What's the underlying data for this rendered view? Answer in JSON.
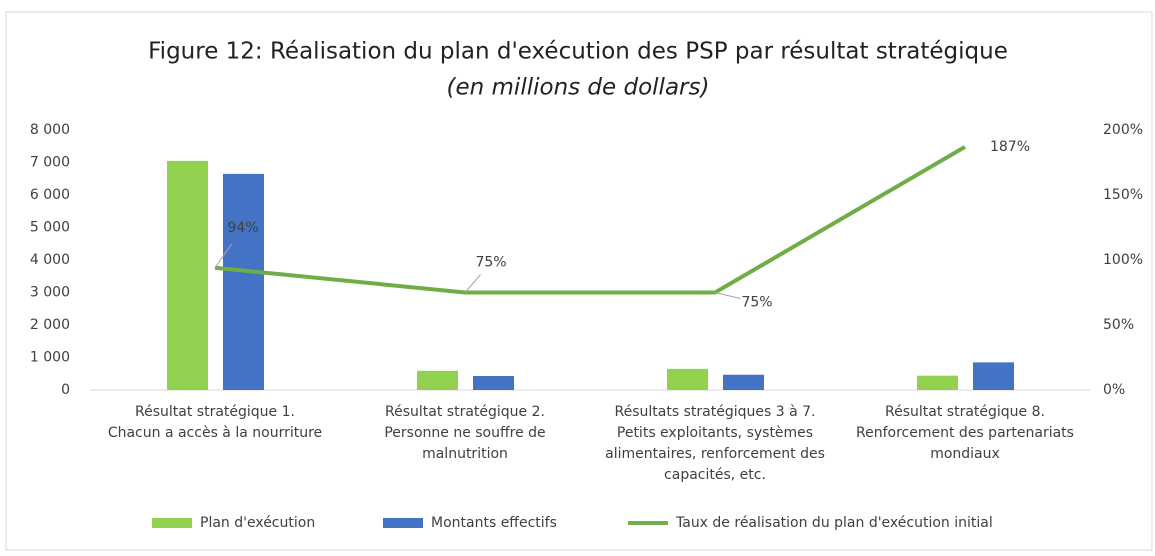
{
  "chart_data": {
    "type": "bar-line",
    "title": "Figure 12: Réalisation du plan d'exécution des PSP par résultat stratégique",
    "subtitle": "(en millions de dollars)",
    "categories": [
      [
        "Résultat stratégique 1.",
        "Chacun a accès à la nourriture"
      ],
      [
        "Résultat stratégique 2.",
        "Personne ne souffre de",
        "malnutrition"
      ],
      [
        "Résultats stratégiques 3 à 7.",
        "Petits exploitants, systèmes",
        "alimentaires, renforcement des",
        "capacités, etc."
      ],
      [
        "Résultat stratégique 8.",
        "Renforcement des partenariats",
        "mondiaux"
      ]
    ],
    "series": [
      {
        "name": "Plan d'exécution",
        "type": "bar",
        "color": "#92d050",
        "values": [
          7050,
          590,
          650,
          440
        ]
      },
      {
        "name": "Montants effectifs",
        "type": "bar",
        "color": "#4472c4",
        "values": [
          6650,
          430,
          470,
          850
        ]
      },
      {
        "name": "Taux de réalisation du plan d'exécution initial",
        "type": "line",
        "axis": "y2",
        "color": "#70ad47",
        "values": [
          94,
          75,
          75,
          187
        ],
        "value_labels": [
          "94%",
          "75%",
          "75%",
          "187%"
        ]
      }
    ],
    "ylim": [
      0,
      8000
    ],
    "yticks": [
      0,
      {
        "value": 1000,
        "label": "1 000"
      },
      {
        "value": 2000,
        "label": "2 000"
      },
      {
        "value": 3000,
        "label": "3 000"
      },
      {
        "value": 4000,
        "label": "4 000"
      },
      {
        "value": 5000,
        "label": "5 000"
      },
      {
        "value": 6000,
        "label": "6 000"
      },
      {
        "value": 7000,
        "label": "7 000"
      },
      {
        "value": 8000,
        "label": "8 000"
      }
    ],
    "y2lim": [
      0,
      200
    ],
    "y2ticks": [
      {
        "value": 0,
        "label": "0%"
      },
      {
        "value": 50,
        "label": "50%"
      },
      {
        "value": 100,
        "label": "100%"
      },
      {
        "value": 150,
        "label": "150%"
      },
      {
        "value": 200,
        "label": "200%"
      }
    ],
    "legend": "bottom"
  }
}
